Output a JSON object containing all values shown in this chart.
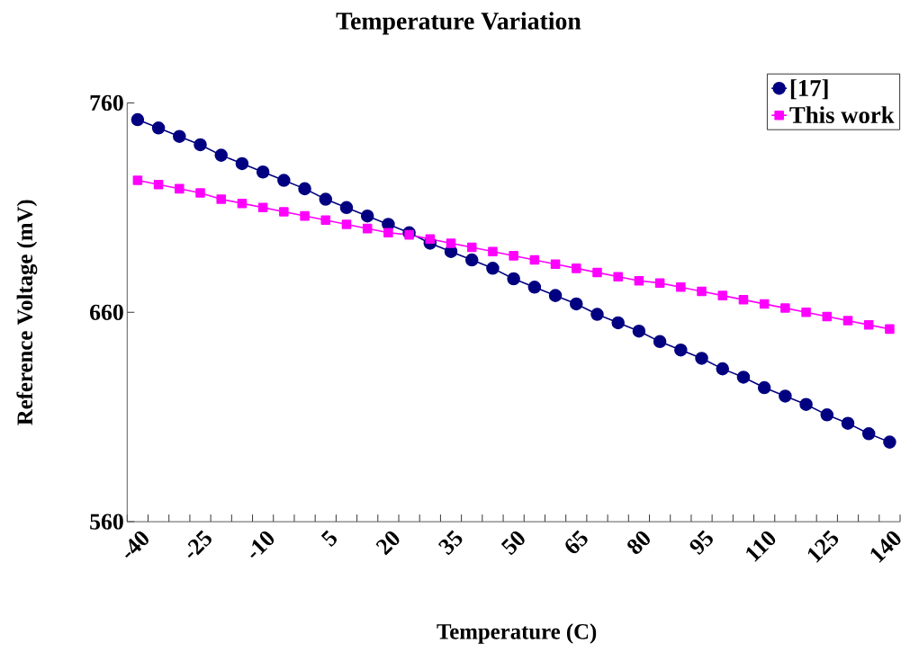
{
  "chart_data": {
    "type": "line",
    "title": "Temperature Variation",
    "xlabel": "Temperature (C)",
    "ylabel": "Reference Voltage (mV)",
    "categories": [
      "-40",
      null,
      null,
      "-25",
      null,
      null,
      "-10",
      null,
      null,
      "5",
      null,
      null,
      "20",
      null,
      null,
      "35",
      null,
      null,
      "50",
      null,
      null,
      "65",
      null,
      null,
      "80",
      null,
      null,
      "95",
      null,
      null,
      "110",
      null,
      null,
      "125",
      null,
      null,
      "140"
    ],
    "series": [
      {
        "name": "[17]",
        "color": "#000080",
        "marker": "circle",
        "values": [
          752,
          748,
          744,
          740,
          735,
          731,
          727,
          723,
          719,
          714,
          710,
          706,
          702,
          698,
          693,
          689,
          685,
          681,
          676,
          672,
          668,
          664,
          659,
          655,
          651,
          646,
          642,
          638,
          633,
          629,
          624,
          620,
          616,
          611,
          607,
          602,
          598
        ]
      },
      {
        "name": "This work",
        "color": "#ff00ff",
        "marker": "square",
        "values": [
          723,
          721,
          719,
          717,
          714,
          712,
          710,
          708,
          706,
          704,
          702,
          700,
          698,
          697,
          695,
          693,
          691,
          689,
          687,
          685,
          683,
          681,
          679,
          677,
          675,
          674,
          672,
          670,
          668,
          666,
          664,
          662,
          660,
          658,
          656,
          654,
          652
        ]
      }
    ],
    "ylim": [
      560,
      760
    ],
    "yticks": [
      560,
      660,
      760
    ],
    "grid": false,
    "legend": "top right",
    "line_style": "solid"
  }
}
